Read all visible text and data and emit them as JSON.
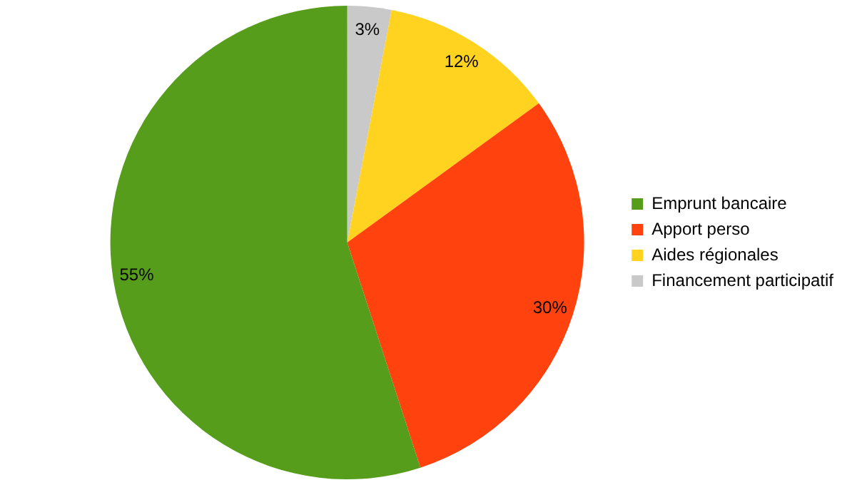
{
  "chart_data": {
    "type": "pie",
    "categories": [
      "Emprunt bancaire",
      "Apport perso",
      "Aides régionales",
      "Financement participatif"
    ],
    "values": [
      55,
      30,
      12,
      3
    ],
    "colors": [
      "#579d1c",
      "#ff420e",
      "#ffd320",
      "#c9c9c9"
    ],
    "value_labels": [
      "55%",
      "30%",
      "12%",
      "3%"
    ],
    "legend": "right"
  }
}
